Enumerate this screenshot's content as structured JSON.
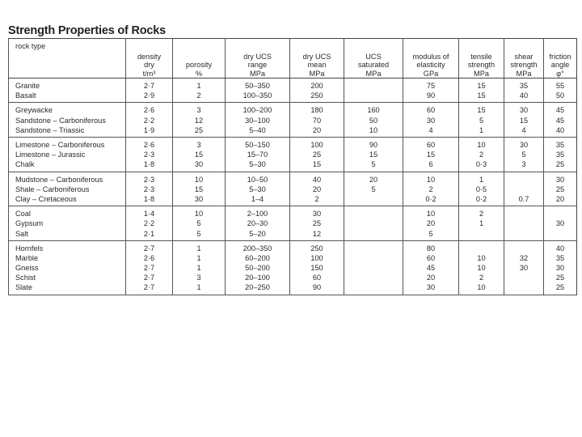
{
  "title": "Strength Properties of Rocks",
  "headers": [
    [
      "rock type"
    ],
    [
      "density",
      "dry",
      "t/m³"
    ],
    [
      "porosity",
      "%"
    ],
    [
      "dry UCS",
      "range",
      "MPa"
    ],
    [
      "dry UCS",
      "mean",
      "MPa"
    ],
    [
      "UCS",
      "saturated",
      "MPa"
    ],
    [
      "modulus of",
      "elasticity",
      "GPa"
    ],
    [
      "tensile",
      "strength",
      "MPa"
    ],
    [
      "shear",
      "strength",
      "MPa"
    ],
    [
      "friction",
      "angle",
      "φ°"
    ]
  ],
  "groups": [
    [
      [
        "Granite",
        "2·7",
        "1",
        "50–350",
        "200",
        "",
        "75",
        "15",
        "35",
        "55"
      ],
      [
        "Basalt",
        "2·9",
        "2",
        "100–350",
        "250",
        "",
        "90",
        "15",
        "40",
        "50"
      ]
    ],
    [
      [
        "Greywacke",
        "2·6",
        "3",
        "100–200",
        "180",
        "160",
        "60",
        "15",
        "30",
        "45"
      ],
      [
        "Sandstone – Carboniferous",
        "2·2",
        "12",
        "30–100",
        "70",
        "50",
        "30",
        "5",
        "15",
        "45"
      ],
      [
        "Sandstone – Triassic",
        "1·9",
        "25",
        "5–40",
        "20",
        "10",
        "4",
        "1",
        "4",
        "40"
      ]
    ],
    [
      [
        "Limestone – Carboniferous",
        "2·6",
        "3",
        "50–150",
        "100",
        "90",
        "60",
        "10",
        "30",
        "35"
      ],
      [
        "Limestone – Jurassic",
        "2·3",
        "15",
        "15–70",
        "25",
        "15",
        "15",
        "2",
        "5",
        "35"
      ],
      [
        "Chalk",
        "1·8",
        "30",
        "5–30",
        "15",
        "5",
        "6",
        "0·3",
        "3",
        "25"
      ]
    ],
    [
      [
        "Mudstone – Carboniferous",
        "2·3",
        "10",
        "10–50",
        "40",
        "20",
        "10",
        "1",
        "",
        "30"
      ],
      [
        "Shale – Carboniferous",
        "2·3",
        "15",
        "5–30",
        "20",
        "5",
        "2",
        "0·5",
        "",
        "25"
      ],
      [
        "Clay – Cretaceous",
        "1·8",
        "30",
        "1–4",
        "2",
        "",
        "0·2",
        "0·2",
        "0.7",
        "20"
      ]
    ],
    [
      [
        "Coal",
        "1·4",
        "10",
        "2–100",
        "30",
        "",
        "10",
        "2",
        "",
        ""
      ],
      [
        "Gypsum",
        "2·2",
        "5",
        "20–30",
        "25",
        "",
        "20",
        "1",
        "",
        "30"
      ],
      [
        "Salt",
        "2·1",
        "5",
        "5–20",
        "12",
        "",
        "5",
        "",
        "",
        ""
      ]
    ],
    [
      [
        "Hornfels",
        "2·7",
        "1",
        "200–350",
        "250",
        "",
        "80",
        "",
        "",
        "40"
      ],
      [
        "Marble",
        "2·6",
        "1",
        "60–200",
        "100",
        "",
        "60",
        "10",
        "32",
        "35"
      ],
      [
        "Gneiss",
        "2·7",
        "1",
        "50–200",
        "150",
        "",
        "45",
        "10",
        "30",
        "30"
      ],
      [
        "Schist",
        "2·7",
        "3",
        "20–100",
        "60",
        "",
        "20",
        "2",
        "",
        "25"
      ],
      [
        "Slate",
        "2·7",
        "1",
        "20–250",
        "90",
        "",
        "30",
        "10",
        "",
        "25"
      ]
    ]
  ]
}
